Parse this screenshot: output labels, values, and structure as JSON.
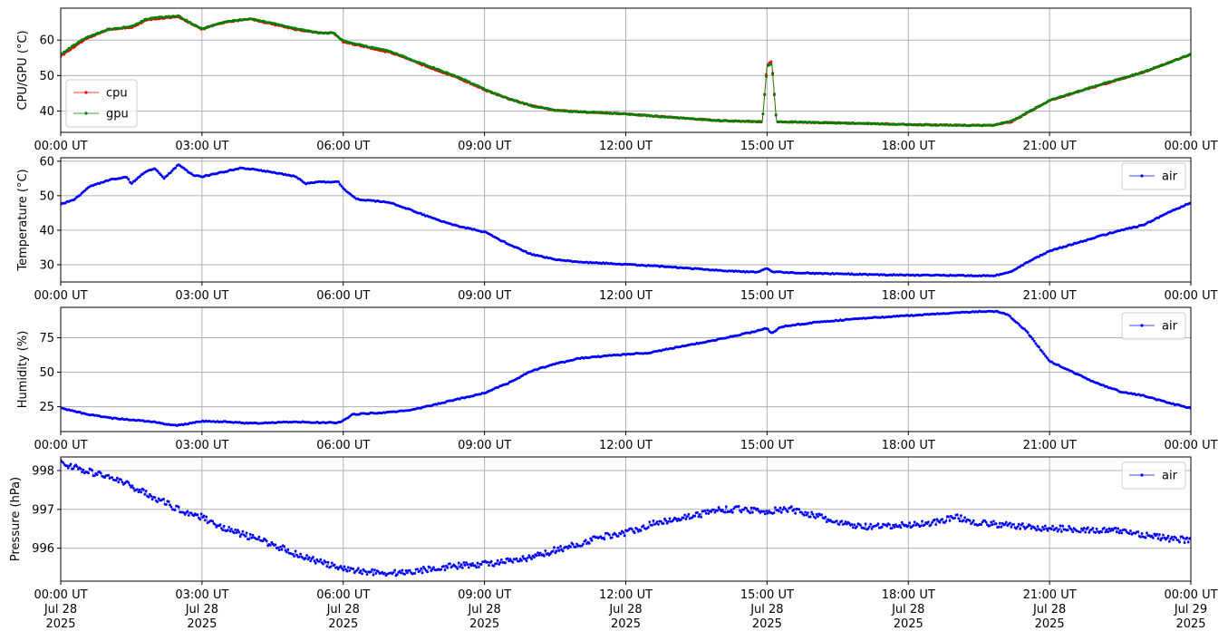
{
  "chart_data": [
    {
      "type": "line",
      "ylabel": "CPU/GPU (°C)",
      "ylim": [
        34,
        69
      ],
      "yticks": [
        40,
        50,
        60
      ],
      "xlim_hours": [
        0,
        24
      ],
      "xtick_labels": [
        "00:00 UT",
        "03:00 UT",
        "06:00 UT",
        "09:00 UT",
        "12:00 UT",
        "15:00 UT",
        "18:00 UT",
        "21:00 UT",
        "00:00 UT"
      ],
      "grid": true,
      "legend_position": "lower-left",
      "series": [
        {
          "name": "cpu",
          "color": "#ff0000",
          "x_hours": [
            0,
            0.5,
            1,
            1.5,
            1.8,
            2,
            2.5,
            2.8,
            3,
            3.2,
            3.5,
            4,
            4.5,
            5,
            5.5,
            5.8,
            6,
            6.5,
            7,
            7.5,
            8,
            8.5,
            9,
            9.5,
            10,
            10.5,
            11,
            12,
            13,
            14,
            14.9,
            15.0,
            15.1,
            15.2,
            16,
            17,
            18,
            19,
            19.8,
            20.2,
            21,
            22,
            23,
            24
          ],
          "values": [
            55.5,
            60,
            63,
            63.5,
            65.5,
            66,
            66.5,
            64.5,
            63,
            64,
            65,
            66,
            64.5,
            63,
            62,
            62,
            59.5,
            58,
            56.5,
            54,
            51.5,
            49,
            46,
            43.5,
            41.5,
            40.2,
            39.8,
            39.2,
            38.2,
            37.3,
            37,
            53,
            54,
            37,
            36.8,
            36.5,
            36.2,
            36,
            36,
            37,
            43,
            47,
            51,
            56
          ]
        },
        {
          "name": "gpu",
          "color": "#008000",
          "x_hours": [
            0,
            0.5,
            1,
            1.5,
            1.8,
            2,
            2.5,
            2.8,
            3,
            3.2,
            3.5,
            4,
            4.5,
            5,
            5.5,
            5.8,
            6,
            6.5,
            7,
            7.5,
            8,
            8.5,
            9,
            9.5,
            10,
            10.5,
            11,
            12,
            13,
            14,
            14.9,
            15.0,
            15.1,
            15.2,
            16,
            17,
            18,
            19,
            19.8,
            20.2,
            21,
            22,
            23,
            24
          ],
          "values": [
            56,
            60.5,
            63,
            63.8,
            65.8,
            66.3,
            66.8,
            64.5,
            63.2,
            64,
            65.2,
            66,
            64.8,
            63.2,
            62,
            62,
            59.8,
            58.2,
            56.8,
            54.2,
            51.8,
            49.2,
            46.2,
            43.5,
            41.5,
            40.2,
            39.8,
            39.2,
            38.2,
            37.3,
            37,
            52.5,
            53.5,
            37,
            36.8,
            36.5,
            36.2,
            36,
            36,
            37.2,
            43,
            47.2,
            51,
            56
          ]
        }
      ]
    },
    {
      "type": "line",
      "ylabel": "Temperature (°C)",
      "ylim": [
        25,
        61
      ],
      "yticks": [
        30,
        40,
        50,
        60
      ],
      "xlim_hours": [
        0,
        24
      ],
      "xtick_labels": [
        "00:00 UT",
        "03:00 UT",
        "06:00 UT",
        "09:00 UT",
        "12:00 UT",
        "15:00 UT",
        "18:00 UT",
        "21:00 UT",
        "00:00 UT"
      ],
      "grid": true,
      "legend_position": "top-right",
      "series": [
        {
          "name": "air",
          "color": "#0000ff",
          "x_hours": [
            0,
            0.3,
            0.6,
            1,
            1.4,
            1.5,
            1.8,
            2,
            2.2,
            2.5,
            2.8,
            3,
            3.3,
            3.5,
            3.8,
            4.2,
            4.6,
            5,
            5.2,
            5.5,
            5.9,
            6,
            6.1,
            6.3,
            7,
            7.5,
            8,
            8.5,
            9,
            9.5,
            10,
            10.5,
            11,
            12,
            13,
            14,
            14.8,
            15.0,
            15.1,
            15.3,
            16,
            17,
            18,
            19,
            19.8,
            20.2,
            20.5,
            21,
            21.5,
            22,
            22.5,
            23,
            23.5,
            24
          ],
          "values": [
            47.5,
            49,
            52.5,
            54.5,
            55.5,
            53.5,
            57,
            58,
            55,
            59,
            56,
            55.5,
            56.5,
            57,
            58,
            57.5,
            56.5,
            55.5,
            53.5,
            54,
            54,
            52,
            51,
            49,
            48,
            45.5,
            43,
            41,
            39.5,
            36,
            33,
            31.5,
            30.8,
            30.1,
            29.3,
            28.3,
            27.8,
            29,
            28,
            27.8,
            27.5,
            27.2,
            27,
            26.9,
            26.8,
            28,
            30.5,
            34,
            36,
            38,
            40,
            41.5,
            45,
            48
          ]
        }
      ]
    },
    {
      "type": "line",
      "ylabel": "Humidity (%)",
      "ylim": [
        7,
        97
      ],
      "yticks": [
        25,
        50,
        75
      ],
      "xlim_hours": [
        0,
        24
      ],
      "xtick_labels": [
        "00:00 UT",
        "03:00 UT",
        "06:00 UT",
        "09:00 UT",
        "12:00 UT",
        "15:00 UT",
        "18:00 UT",
        "21:00 UT",
        "00:00 UT"
      ],
      "grid": true,
      "legend_position": "top-right",
      "series": [
        {
          "name": "air",
          "color": "#0000ff",
          "x_hours": [
            0,
            0.5,
            1,
            1.5,
            2,
            2.2,
            2.5,
            3,
            3.5,
            4,
            5,
            5.5,
            5.9,
            6,
            6.2,
            7,
            7.5,
            8,
            8.5,
            9,
            9.5,
            10,
            10.5,
            11,
            12,
            12.5,
            13,
            14,
            14.8,
            15.0,
            15.1,
            15.3,
            16,
            17,
            18,
            19,
            19.5,
            19.9,
            20.1,
            20.5,
            21,
            21.5,
            22,
            22.5,
            23,
            23.5,
            24
          ],
          "values": [
            24,
            20,
            17,
            15.5,
            14,
            12.5,
            11.5,
            14.5,
            14,
            13,
            14,
            13.5,
            13.5,
            15,
            19.5,
            21,
            23,
            27,
            31,
            35,
            42,
            51,
            56,
            60,
            63,
            64,
            67.5,
            74,
            80,
            82,
            78,
            83,
            86,
            89,
            91,
            93,
            94,
            94,
            92,
            80,
            58,
            50,
            42,
            36,
            33,
            28,
            24
          ]
        }
      ]
    },
    {
      "type": "scatter",
      "ylabel": "Pressure (hPa)",
      "ylim": [
        995.15,
        998.35
      ],
      "yticks": [
        996,
        997,
        998
      ],
      "xlim_hours": [
        0,
        24
      ],
      "xtick_labels": [
        "00:00 UT",
        "03:00 UT",
        "06:00 UT",
        "09:00 UT",
        "12:00 UT",
        "15:00 UT",
        "18:00 UT",
        "21:00 UT",
        "00:00 UT"
      ],
      "xtick_date_labels": [
        "Jul 28",
        "Jul 28",
        "Jul 28",
        "Jul 28",
        "Jul 28",
        "Jul 28",
        "Jul 28",
        "Jul 28",
        "Jul 29"
      ],
      "xtick_year_labels": [
        "2025",
        "2025",
        "2025",
        "2025",
        "2025",
        "2025",
        "2025",
        "2025",
        "2025"
      ],
      "grid": true,
      "legend_position": "top-right",
      "series": [
        {
          "name": "air",
          "color": "#0000ff",
          "x_hours": [
            0,
            0.5,
            1,
            1.5,
            2,
            2.5,
            3,
            3.5,
            4,
            4.5,
            5,
            5.5,
            6,
            6.5,
            7,
            7.5,
            8,
            8.5,
            9,
            9.5,
            10,
            10.5,
            11,
            11.5,
            12,
            12.5,
            13,
            13.5,
            14,
            14.5,
            15,
            15.5,
            16,
            16.5,
            17,
            17.5,
            18,
            18.5,
            19,
            19.5,
            20,
            20.5,
            21,
            21.5,
            22,
            22.5,
            23,
            23.5,
            24
          ],
          "values": [
            998.2,
            998.0,
            997.85,
            997.6,
            997.3,
            997.0,
            996.8,
            996.5,
            996.3,
            996.1,
            995.85,
            995.65,
            995.45,
            995.4,
            995.35,
            995.4,
            995.5,
            995.55,
            995.6,
            995.65,
            995.75,
            995.95,
            996.1,
            996.3,
            996.4,
            996.6,
            996.75,
            996.85,
            997.0,
            997.0,
            996.95,
            997.0,
            996.85,
            996.65,
            996.55,
            996.55,
            996.6,
            996.65,
            996.8,
            996.65,
            996.6,
            996.55,
            996.5,
            996.5,
            996.45,
            996.45,
            996.35,
            996.25,
            996.2
          ]
        }
      ]
    }
  ]
}
